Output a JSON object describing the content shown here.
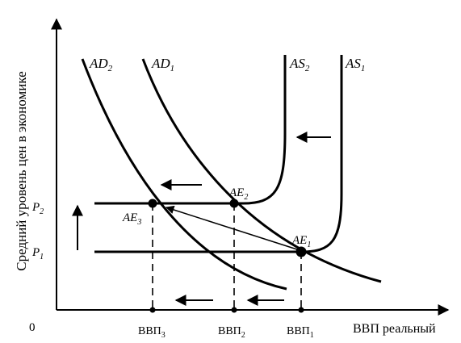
{
  "y_axis_label": "Средний уровень цен в экономике",
  "x_axis_label": "ВВП реальный",
  "origin_label": "0",
  "curves": {
    "ad2": {
      "main": "AD",
      "sub": "2"
    },
    "ad1": {
      "main": "AD",
      "sub": "1"
    },
    "as2": {
      "main": "AS",
      "sub": "2"
    },
    "as1": {
      "main": "AS",
      "sub": "1"
    }
  },
  "price_levels": {
    "p2": {
      "main": "P",
      "sub": "2"
    },
    "p1": {
      "main": "P",
      "sub": "1"
    }
  },
  "equilibria": {
    "ae1": {
      "main": "AE",
      "sub": "1"
    },
    "ae2": {
      "main": "AE",
      "sub": "2"
    },
    "ae3": {
      "main": "AE",
      "sub": "3"
    }
  },
  "gdp_levels": {
    "gdp3": {
      "main": "ВВП",
      "sub": "3"
    },
    "gdp2": {
      "main": "ВВП",
      "sub": "2"
    },
    "gdp1": {
      "main": "ВВП",
      "sub": "1"
    }
  },
  "colors": {
    "ink": "#000000",
    "background": "#ffffff"
  }
}
